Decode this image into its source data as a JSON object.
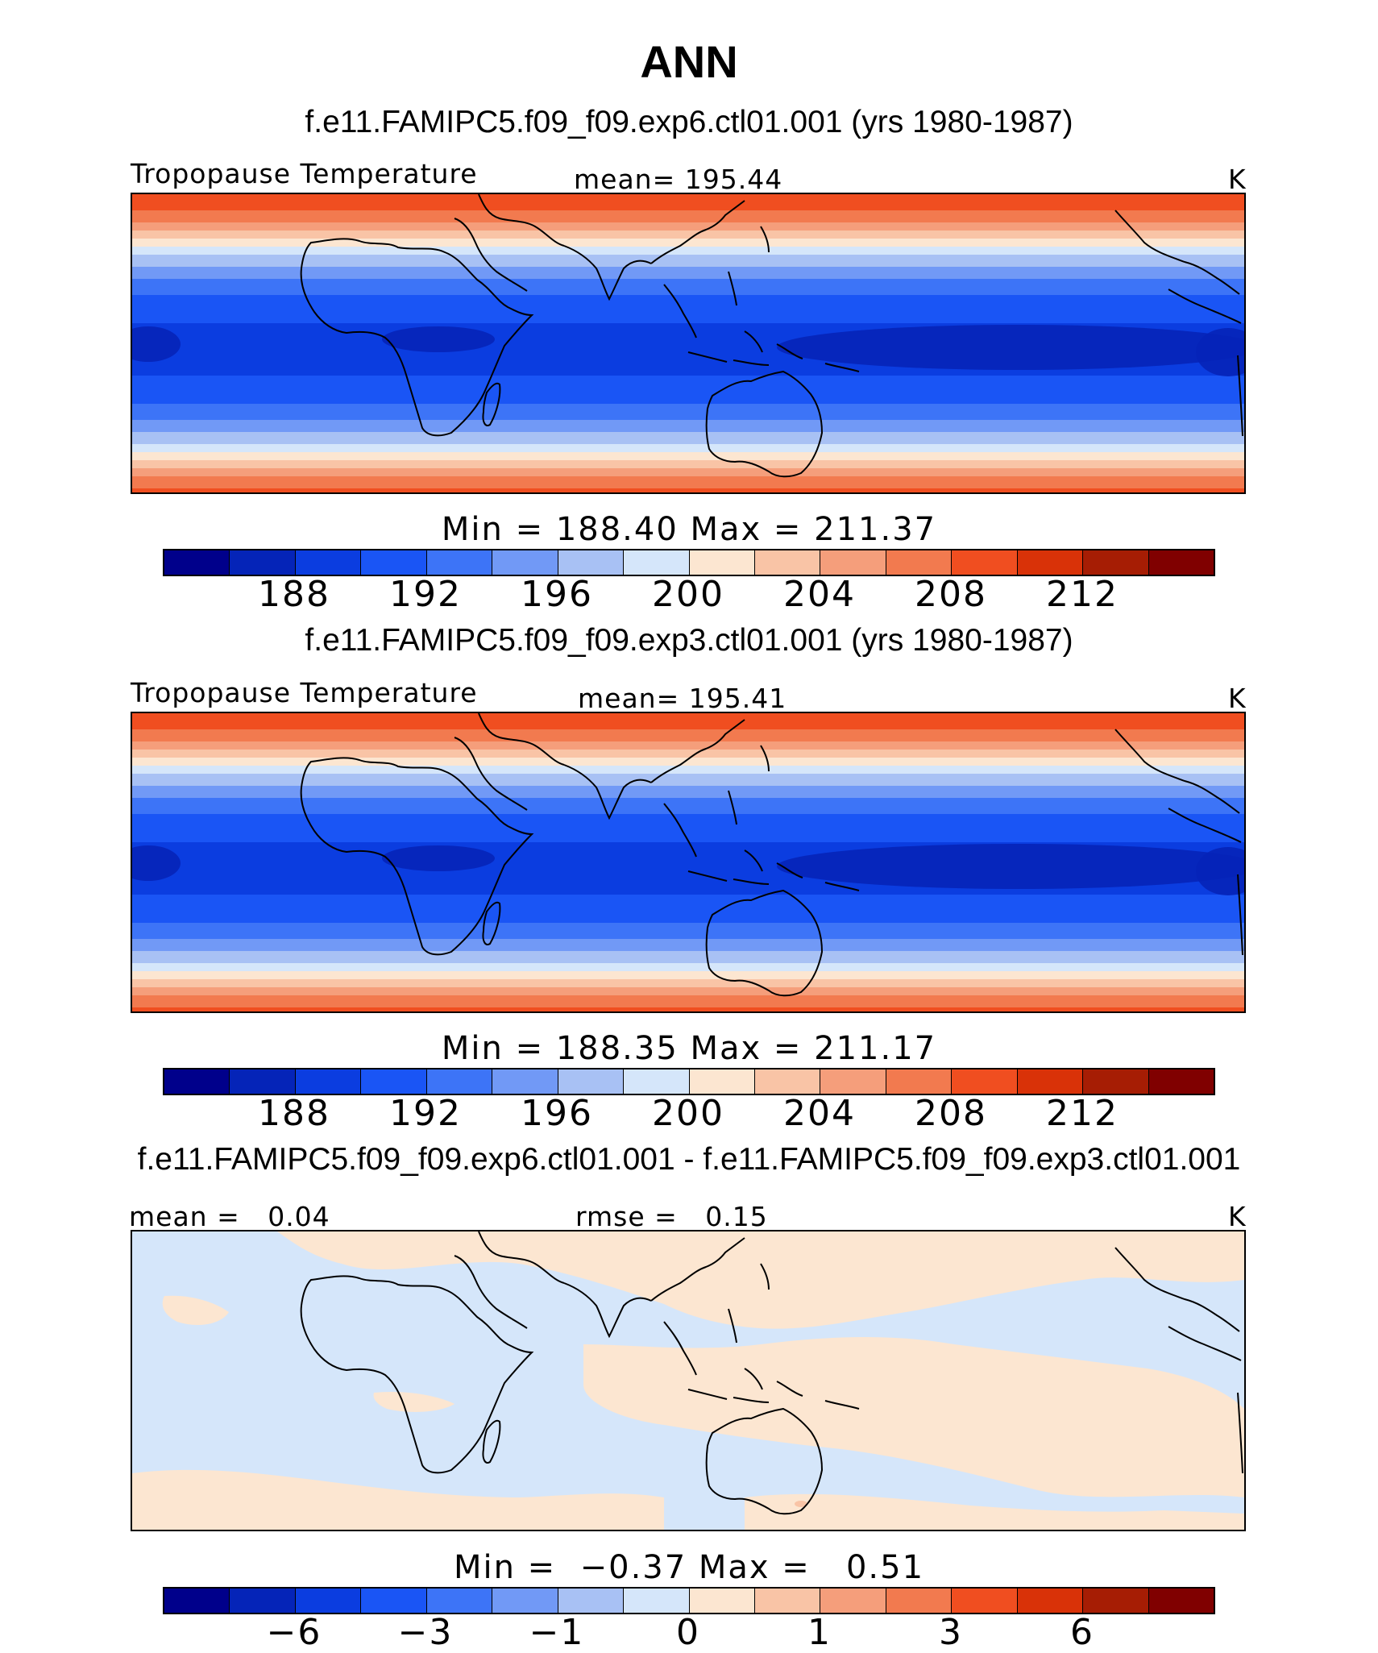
{
  "page_title": "ANN",
  "palette": [
    "#00008b",
    "#0524b8",
    "#0b3de0",
    "#1a55f5",
    "#3d74f7",
    "#7199f6",
    "#a8c1f4",
    "#d5e6fa",
    "#fce6d1",
    "#f9c4a6",
    "#f59e7b",
    "#f27a4f",
    "#f04e20",
    "#d93208",
    "#a61d04",
    "#800000"
  ],
  "panels": [
    {
      "case_title": "f.e11.FAMIPC5.f09_f09.exp6.ctl01.001 (yrs 1980-1987)",
      "left_label": "Tropopause Temperature",
      "center_label": "mean= 195.44",
      "units": "K",
      "minmax": "Min = 188.40 Max = 211.37",
      "ticks": [
        "188",
        "192",
        "196",
        "200",
        "204",
        "208",
        "212"
      ],
      "map_kind": "abs"
    },
    {
      "case_title": "f.e11.FAMIPC5.f09_f09.exp3.ctl01.001 (yrs 1980-1987)",
      "left_label": "Tropopause Temperature",
      "center_label": "mean= 195.41",
      "units": "K",
      "minmax": "Min = 188.35 Max = 211.17",
      "ticks": [
        "188",
        "192",
        "196",
        "200",
        "204",
        "208",
        "212"
      ],
      "map_kind": "abs"
    },
    {
      "case_title": "f.e11.FAMIPC5.f09_f09.exp6.ctl01.001 - f.e11.FAMIPC5.f09_f09.exp3.ctl01.001",
      "left_label": "mean =   0.04",
      "center_label": "rmse =   0.15",
      "units": "K",
      "minmax": "Min =  −0.37 Max =   0.51",
      "ticks": [
        "−6",
        "−3",
        "−1",
        "0",
        "1",
        "3",
        "6"
      ],
      "map_kind": "diff"
    }
  ]
}
